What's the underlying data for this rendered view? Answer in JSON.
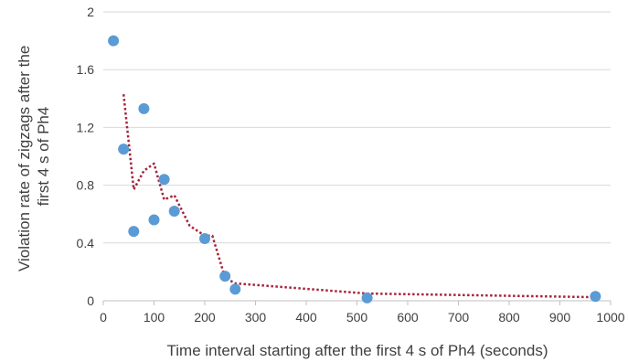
{
  "chart_data": {
    "type": "scatter",
    "title": "",
    "xlabel": "Time interval starting after the first 4 s of Ph4 (seconds)",
    "ylabel_lines": [
      "Violation rate of zigzags after the",
      "first 4 s of Ph4"
    ],
    "xlim": [
      0,
      1000
    ],
    "ylim": [
      0,
      2
    ],
    "x_ticks": [
      "0",
      "100",
      "200",
      "300",
      "400",
      "500",
      "600",
      "700",
      "800",
      "900",
      "1000"
    ],
    "y_ticks": [
      "0",
      "0.4",
      "0.8",
      "1.2",
      "1.6",
      "2"
    ],
    "grid": "horizontal",
    "points": [
      {
        "x": 20,
        "y": 1.8
      },
      {
        "x": 40,
        "y": 1.05
      },
      {
        "x": 60,
        "y": 0.48
      },
      {
        "x": 80,
        "y": 1.33
      },
      {
        "x": 100,
        "y": 0.56
      },
      {
        "x": 120,
        "y": 0.84
      },
      {
        "x": 140,
        "y": 0.62
      },
      {
        "x": 200,
        "y": 0.43
      },
      {
        "x": 240,
        "y": 0.17
      },
      {
        "x": 260,
        "y": 0.08
      },
      {
        "x": 520,
        "y": 0.02
      },
      {
        "x": 970,
        "y": 0.03
      }
    ],
    "trendline": {
      "style": "dotted",
      "points": [
        {
          "x": 40,
          "y": 1.43
        },
        {
          "x": 60,
          "y": 0.77
        },
        {
          "x": 80,
          "y": 0.9
        },
        {
          "x": 100,
          "y": 0.95
        },
        {
          "x": 120,
          "y": 0.7
        },
        {
          "x": 140,
          "y": 0.73
        },
        {
          "x": 170,
          "y": 0.52
        },
        {
          "x": 200,
          "y": 0.45
        },
        {
          "x": 215,
          "y": 0.45
        },
        {
          "x": 240,
          "y": 0.16
        },
        {
          "x": 260,
          "y": 0.12
        },
        {
          "x": 520,
          "y": 0.05
        },
        {
          "x": 970,
          "y": 0.025
        }
      ]
    },
    "colors": {
      "marker": "#5b9bd5",
      "trendline": "#a5243d"
    }
  }
}
